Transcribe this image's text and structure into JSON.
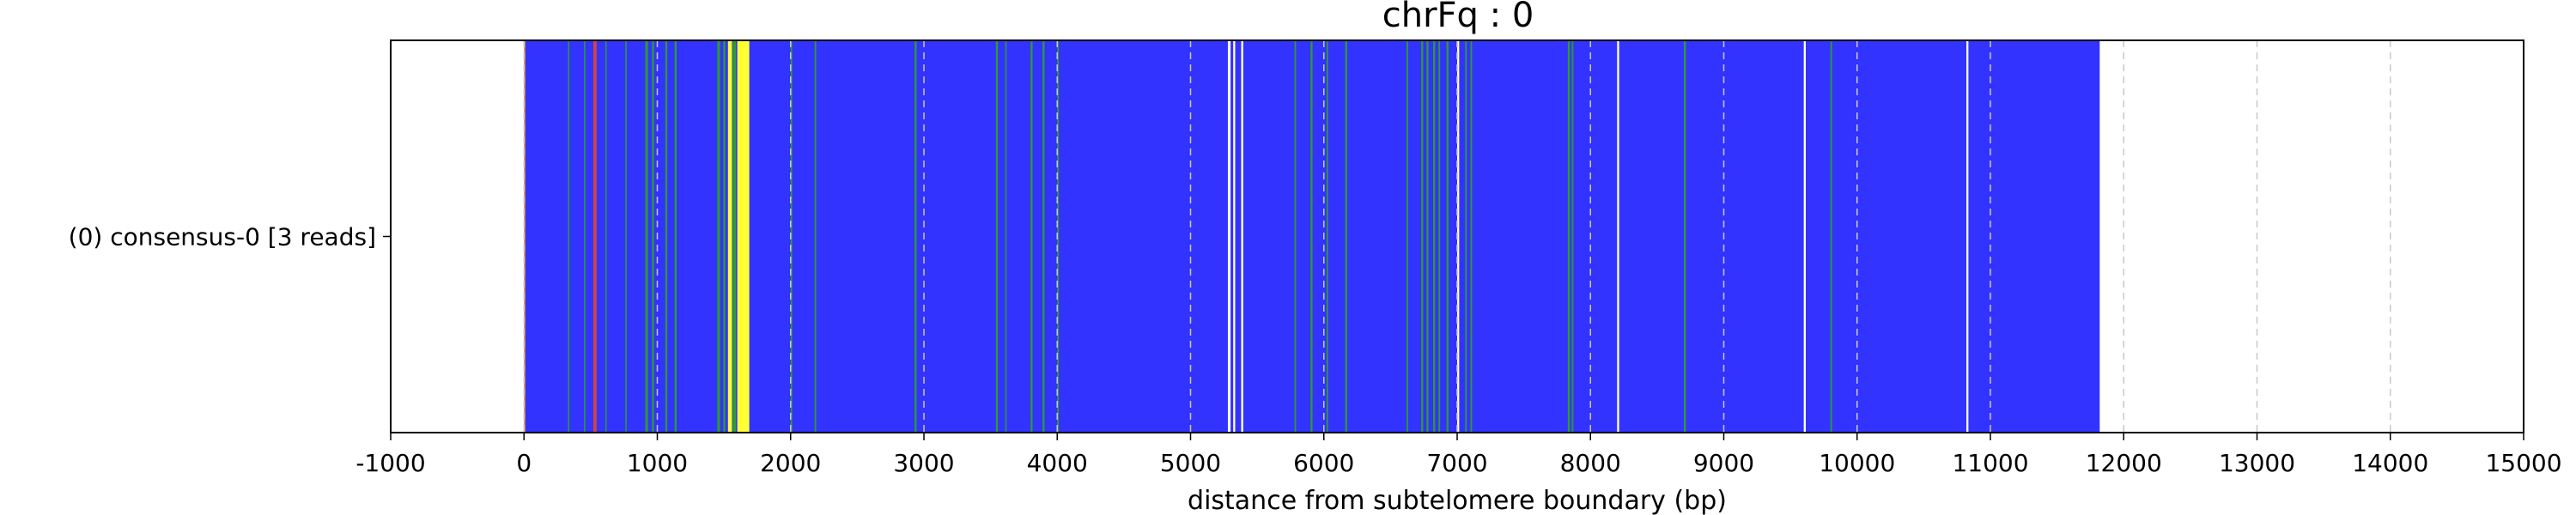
{
  "chart_data": {
    "type": "bar",
    "title": "chrFq : 0",
    "xlabel": "distance from subtelomere boundary (bp)",
    "ylabel": "",
    "xlim": [
      -1000,
      15000
    ],
    "xticks": [
      -1000,
      0,
      1000,
      2000,
      3000,
      4000,
      5000,
      6000,
      7000,
      8000,
      9000,
      10000,
      11000,
      12000,
      13000,
      14000,
      15000
    ],
    "grid": "vertical dashed at x ticks",
    "categories": [
      "(0) consensus-0 [3 reads]"
    ],
    "series": [
      {
        "values": [
          {
            "start": 0,
            "end": 11820,
            "color": "#3333ff"
          }
        ]
      }
    ],
    "annotations": {
      "yellow": [
        [
          1530,
          1560
        ],
        [
          1600,
          1690
        ]
      ],
      "green": [
        [
          330,
          340
        ],
        [
          450,
          460
        ],
        [
          610,
          620
        ],
        [
          760,
          770
        ],
        [
          910,
          930
        ],
        [
          960,
          975
        ],
        [
          1060,
          1075
        ],
        [
          1130,
          1145
        ],
        [
          1450,
          1470
        ],
        [
          1495,
          1510
        ],
        [
          1565,
          1590
        ],
        [
          2000,
          2012
        ],
        [
          2180,
          2192
        ],
        [
          2930,
          2945
        ],
        [
          3540,
          3555
        ],
        [
          3610,
          3620
        ],
        [
          3800,
          3815
        ],
        [
          3890,
          3905
        ],
        [
          4000,
          4012
        ],
        [
          5780,
          5792
        ],
        [
          5900,
          5915
        ],
        [
          6020,
          6032
        ],
        [
          6160,
          6175
        ],
        [
          6620,
          6632
        ],
        [
          6730,
          6745
        ],
        [
          6770,
          6785
        ],
        [
          6820,
          6835
        ],
        [
          6860,
          6872
        ],
        [
          6920,
          6935
        ],
        [
          7060,
          7072
        ],
        [
          7100,
          7112
        ],
        [
          7830,
          7845
        ],
        [
          7860,
          7872
        ],
        [
          8700,
          8715
        ],
        [
          9800,
          9812
        ]
      ],
      "white": [
        [
          5280,
          5300
        ],
        [
          5320,
          5335
        ],
        [
          5380,
          5395
        ],
        [
          7000,
          7015
        ],
        [
          8200,
          8215
        ],
        [
          9600,
          9615
        ],
        [
          10820,
          10835
        ]
      ],
      "red": [
        [
          520,
          545
        ]
      ],
      "orange": [
        [
          0,
          10
        ]
      ]
    }
  }
}
